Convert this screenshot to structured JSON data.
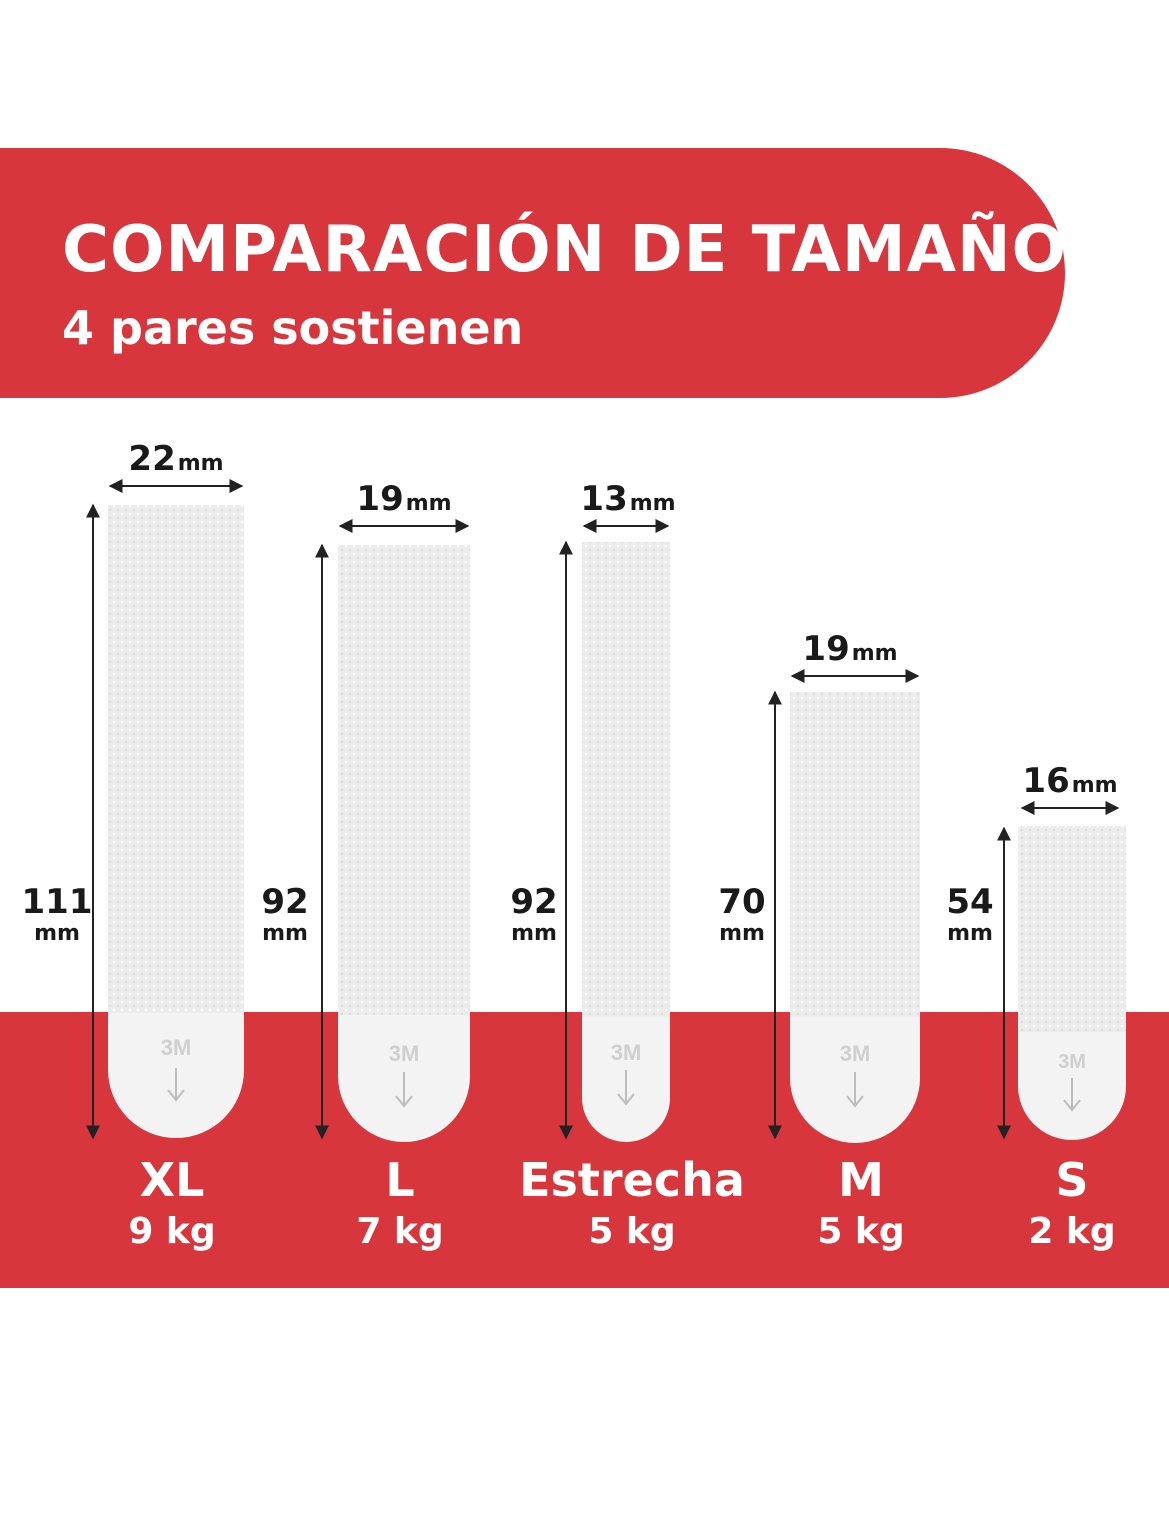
{
  "header": {
    "title": "COMPARACIÓN DE TAMAÑOS",
    "subtitle": "4 pares sostienen"
  },
  "colors": {
    "accent_red": "#d7363d",
    "strip_white": "#f1f1f1",
    "text_dark": "#1a1a1a"
  },
  "strip_logo": "3M",
  "strips": [
    {
      "name": "XL",
      "weight": "9 kg",
      "width_value": "22",
      "width_unit": "mm",
      "height_value": "111",
      "height_unit": "mm"
    },
    {
      "name": "L",
      "weight": "7 kg",
      "width_value": "19",
      "width_unit": "mm",
      "height_value": "92",
      "height_unit": "mm"
    },
    {
      "name": "Estrecha",
      "weight": "5 kg",
      "width_value": "13",
      "width_unit": "mm",
      "height_value": "92",
      "height_unit": "mm"
    },
    {
      "name": "M",
      "weight": "5 kg",
      "width_value": "19",
      "width_unit": "mm",
      "height_value": "70",
      "height_unit": "mm"
    },
    {
      "name": "S",
      "weight": "2 kg",
      "width_value": "16",
      "width_unit": "mm",
      "height_value": "54",
      "height_unit": "mm"
    }
  ]
}
